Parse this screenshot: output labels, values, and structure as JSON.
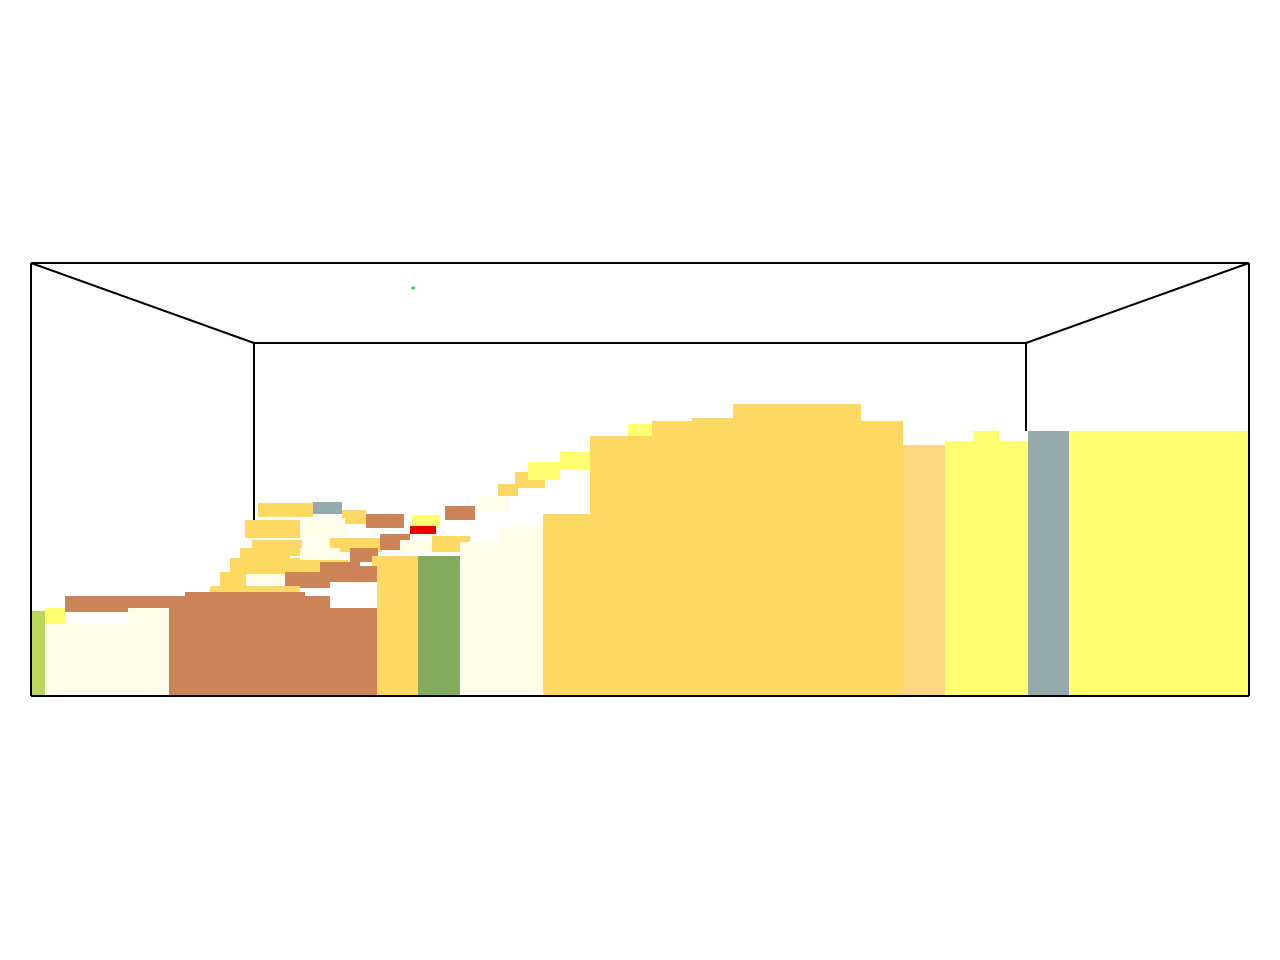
{
  "scene": {
    "background": "#ffffff",
    "frame_color": "#000000",
    "marker_color": "#00cc00",
    "palette": {
      "ochre": "#fdd963",
      "yellow": "#ffff70",
      "cream": "#fdfde9",
      "terracotta": "#cc8355",
      "green": "#82ab5e",
      "lime": "#b9d65a",
      "slate": "#95a9aa",
      "peach": "#fdd582",
      "red": "#ee0000"
    }
  }
}
